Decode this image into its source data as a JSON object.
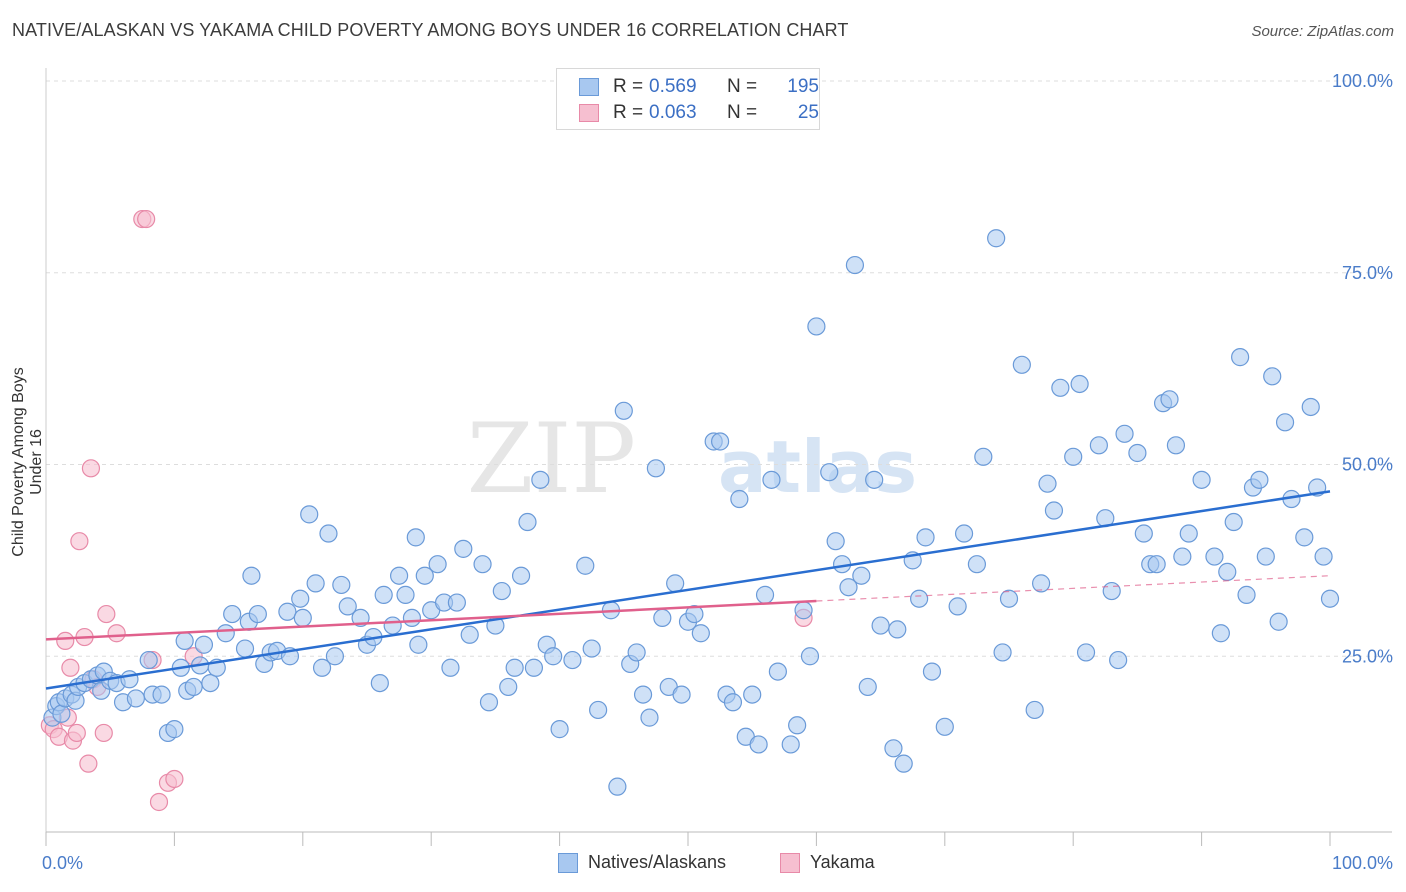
{
  "title": "NATIVE/ALASKAN VS YAKAMA CHILD POVERTY AMONG BOYS UNDER 16 CORRELATION CHART",
  "source": "Source: ZipAtlas.com",
  "watermark": {
    "zip": "ZIP",
    "atlas": "atlas"
  },
  "legend": {
    "r_label": "R =",
    "n_label": "N =",
    "series1": {
      "r": "0.569",
      "n": "195"
    },
    "series2": {
      "r": "0.063",
      "n": "25"
    }
  },
  "bottom_legend": {
    "series1": "Natives/Alaskans",
    "series2": "Yakama"
  },
  "colors": {
    "blue_fill": "#a8c8f0",
    "blue_stroke": "#6a9ad8",
    "blue_line": "#2a6ed0",
    "pink_fill": "#f6bfd0",
    "pink_stroke": "#e88aa8",
    "pink_line": "#e0608c",
    "tick_text": "#4a7cc9",
    "grid": "#dddddd"
  },
  "chart_data": {
    "type": "scatter",
    "title": "NATIVE/ALASKAN VS YAKAMA CHILD POVERTY AMONG BOYS UNDER 16 CORRELATION CHART",
    "xlabel": "",
    "ylabel": "Child Poverty Among Boys Under 16",
    "xlim": [
      0,
      100
    ],
    "ylim": [
      0,
      100
    ],
    "x_tick_labels": [
      "0.0%",
      "100.0%"
    ],
    "y_ticks": [
      25,
      50,
      75,
      100
    ],
    "y_tick_labels": [
      "25.0%",
      "50.0%",
      "75.0%",
      "100.0%"
    ],
    "series": [
      {
        "name": "Natives/Alaskans",
        "r": 0.569,
        "n": 195,
        "trend": {
          "x": [
            0,
            100
          ],
          "y": [
            20.8,
            46.5
          ]
        },
        "points": [
          [
            0.5,
            17
          ],
          [
            0.8,
            18.5
          ],
          [
            1,
            19
          ],
          [
            1.2,
            17.5
          ],
          [
            1.5,
            19.5
          ],
          [
            2,
            20
          ],
          [
            2.3,
            19.2
          ],
          [
            2.5,
            21
          ],
          [
            3,
            21.5
          ],
          [
            3.5,
            22
          ],
          [
            4,
            22.5
          ],
          [
            4.3,
            20.5
          ],
          [
            4.5,
            23
          ],
          [
            5,
            21.8
          ],
          [
            5.5,
            21.5
          ],
          [
            6,
            19
          ],
          [
            6.5,
            22
          ],
          [
            7,
            19.5
          ],
          [
            8,
            24.5
          ],
          [
            8.3,
            20
          ],
          [
            9,
            20
          ],
          [
            9.5,
            15
          ],
          [
            10,
            15.5
          ],
          [
            10.5,
            23.5
          ],
          [
            10.8,
            27
          ],
          [
            11,
            20.5
          ],
          [
            11.5,
            21
          ],
          [
            12,
            23.8
          ],
          [
            12.3,
            26.5
          ],
          [
            12.8,
            21.5
          ],
          [
            13.3,
            23.5
          ],
          [
            14,
            28
          ],
          [
            14.5,
            30.5
          ],
          [
            15.5,
            26
          ],
          [
            15.8,
            29.5
          ],
          [
            16,
            35.5
          ],
          [
            16.5,
            30.5
          ],
          [
            17,
            24
          ],
          [
            17.5,
            25.5
          ],
          [
            18,
            25.7
          ],
          [
            18.8,
            30.8
          ],
          [
            19,
            25
          ],
          [
            19.8,
            32.5
          ],
          [
            20,
            30
          ],
          [
            20.5,
            43.5
          ],
          [
            21,
            34.5
          ],
          [
            21.5,
            23.5
          ],
          [
            22,
            41
          ],
          [
            22.5,
            25
          ],
          [
            23,
            34.3
          ],
          [
            23.5,
            31.5
          ],
          [
            24.5,
            30
          ],
          [
            25,
            26.5
          ],
          [
            25.5,
            27.5
          ],
          [
            26,
            21.5
          ],
          [
            26.3,
            33
          ],
          [
            27,
            29
          ],
          [
            27.5,
            35.5
          ],
          [
            28,
            33
          ],
          [
            28.5,
            30
          ],
          [
            28.8,
            40.5
          ],
          [
            29,
            26.5
          ],
          [
            29.5,
            35.5
          ],
          [
            30,
            31
          ],
          [
            30.5,
            37
          ],
          [
            31,
            32
          ],
          [
            31.5,
            23.5
          ],
          [
            32,
            32
          ],
          [
            32.5,
            39
          ],
          [
            33,
            27.8
          ],
          [
            34,
            37
          ],
          [
            34.5,
            19
          ],
          [
            35,
            29
          ],
          [
            35.5,
            33.5
          ],
          [
            36,
            21
          ],
          [
            36.5,
            23.5
          ],
          [
            37,
            35.5
          ],
          [
            37.5,
            42.5
          ],
          [
            38,
            23.5
          ],
          [
            38.5,
            48
          ],
          [
            39,
            26.5
          ],
          [
            39.5,
            25
          ],
          [
            40,
            15.5
          ],
          [
            41,
            24.5
          ],
          [
            42,
            36.8
          ],
          [
            42.5,
            26
          ],
          [
            43,
            18
          ],
          [
            44,
            31
          ],
          [
            44.5,
            8
          ],
          [
            45,
            57
          ],
          [
            45.5,
            24
          ],
          [
            46,
            25.5
          ],
          [
            46.5,
            20
          ],
          [
            47,
            17
          ],
          [
            47.5,
            49.5
          ],
          [
            48,
            30
          ],
          [
            48.5,
            21
          ],
          [
            49,
            34.5
          ],
          [
            49.5,
            20
          ],
          [
            50,
            29.5
          ],
          [
            50.5,
            30.5
          ],
          [
            51,
            28
          ],
          [
            52,
            53
          ],
          [
            52.5,
            53
          ],
          [
            53,
            20
          ],
          [
            53.5,
            19
          ],
          [
            54,
            45.5
          ],
          [
            54.5,
            14.5
          ],
          [
            55,
            20
          ],
          [
            55.5,
            13.5
          ],
          [
            56,
            33
          ],
          [
            56.5,
            48
          ],
          [
            57,
            23
          ],
          [
            58,
            13.5
          ],
          [
            58.5,
            16
          ],
          [
            59,
            31
          ],
          [
            59.5,
            25
          ],
          [
            60,
            68
          ],
          [
            61,
            49
          ],
          [
            61.5,
            40
          ],
          [
            62,
            37
          ],
          [
            62.5,
            34
          ],
          [
            63,
            76
          ],
          [
            63.5,
            35.5
          ],
          [
            64,
            21
          ],
          [
            64.5,
            48
          ],
          [
            65,
            29
          ],
          [
            66,
            13
          ],
          [
            66.3,
            28.5
          ],
          [
            66.8,
            11
          ],
          [
            67.5,
            37.5
          ],
          [
            68,
            32.5
          ],
          [
            68.5,
            40.5
          ],
          [
            69,
            23
          ],
          [
            70,
            15.8
          ],
          [
            71,
            31.5
          ],
          [
            71.5,
            41
          ],
          [
            72.5,
            37
          ],
          [
            73,
            51
          ],
          [
            74,
            79.5
          ],
          [
            74.5,
            25.5
          ],
          [
            75,
            32.5
          ],
          [
            76,
            63
          ],
          [
            77,
            18
          ],
          [
            77.5,
            34.5
          ],
          [
            78,
            47.5
          ],
          [
            78.5,
            44
          ],
          [
            79,
            60
          ],
          [
            80,
            51
          ],
          [
            80.5,
            60.5
          ],
          [
            81,
            25.5
          ],
          [
            82,
            52.5
          ],
          [
            82.5,
            43
          ],
          [
            83,
            33.5
          ],
          [
            83.5,
            24.5
          ],
          [
            84,
            54
          ],
          [
            85,
            51.5
          ],
          [
            85.5,
            41
          ],
          [
            86,
            37
          ],
          [
            86.5,
            37
          ],
          [
            87,
            58
          ],
          [
            87.5,
            58.5
          ],
          [
            88,
            52.5
          ],
          [
            88.5,
            38
          ],
          [
            89,
            41
          ],
          [
            90,
            48
          ],
          [
            91,
            38
          ],
          [
            91.5,
            28
          ],
          [
            92,
            36
          ],
          [
            92.5,
            42.5
          ],
          [
            93,
            64
          ],
          [
            93.5,
            33
          ],
          [
            94,
            47
          ],
          [
            94.5,
            48
          ],
          [
            95,
            38
          ],
          [
            95.5,
            61.5
          ],
          [
            96,
            29.5
          ],
          [
            96.5,
            55.5
          ],
          [
            97,
            45.5
          ],
          [
            98,
            40.5
          ],
          [
            98.5,
            57.5
          ],
          [
            99,
            47
          ],
          [
            99.5,
            38
          ],
          [
            100,
            32.5
          ]
        ]
      },
      {
        "name": "Yakama",
        "r": 0.063,
        "n": 25,
        "trend": {
          "x": [
            0,
            60
          ],
          "y": [
            27.2,
            32.2
          ]
        },
        "trend_dashed": {
          "x": [
            60,
            100
          ],
          "y": [
            32.2,
            35.5
          ]
        },
        "points": [
          [
            0.3,
            16
          ],
          [
            0.6,
            15.5
          ],
          [
            1,
            14.5
          ],
          [
            1.5,
            27
          ],
          [
            1.7,
            17
          ],
          [
            1.9,
            23.5
          ],
          [
            2.1,
            14
          ],
          [
            2.4,
            15
          ],
          [
            2.6,
            40
          ],
          [
            3,
            27.5
          ],
          [
            3.3,
            11
          ],
          [
            3.5,
            49.5
          ],
          [
            3.7,
            22
          ],
          [
            4,
            21
          ],
          [
            4.5,
            15
          ],
          [
            4.7,
            30.5
          ],
          [
            5.5,
            28
          ],
          [
            7.5,
            82
          ],
          [
            7.8,
            82
          ],
          [
            8.3,
            24.5
          ],
          [
            8.8,
            6
          ],
          [
            9.5,
            8.5
          ],
          [
            10,
            9
          ],
          [
            11.5,
            25
          ],
          [
            59,
            30
          ]
        ]
      }
    ]
  }
}
